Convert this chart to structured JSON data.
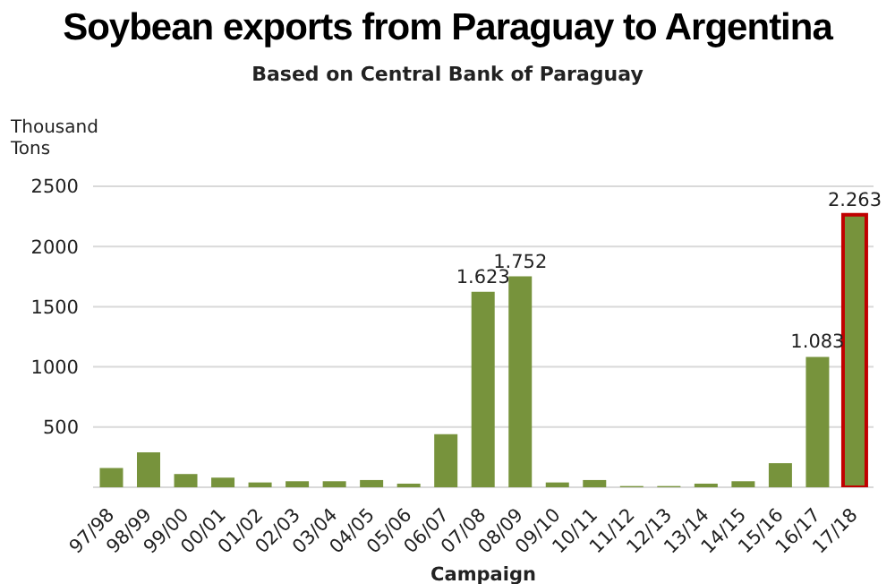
{
  "chart_data": {
    "type": "bar",
    "title": "Soybean exports from Paraguay to Argentina",
    "subtitle": "Based on Central Bank of Paraguay",
    "xlabel": "Campaign",
    "ylabel": "Thousand Tons",
    "categories": [
      "97/98",
      "98/99",
      "99/00",
      "00/01",
      "01/02",
      "02/03",
      "03/04",
      "04/05",
      "05/06",
      "06/07",
      "07/08",
      "08/09",
      "09/10",
      "10/11",
      "11/12",
      "12/13",
      "13/14",
      "14/15",
      "15/16",
      "16/17",
      "17/18"
    ],
    "values": [
      160,
      290,
      110,
      80,
      40,
      50,
      50,
      60,
      30,
      440,
      1623,
      1752,
      40,
      60,
      10,
      10,
      30,
      50,
      200,
      1083,
      2263
    ],
    "value_labels": [
      null,
      null,
      null,
      null,
      null,
      null,
      null,
      null,
      null,
      null,
      "1.623",
      "1.752",
      null,
      null,
      null,
      null,
      null,
      null,
      null,
      "1.083",
      "2.263"
    ],
    "color": "#77933c",
    "ylim": [
      0,
      2500
    ],
    "yticks": [
      {
        "value": 0,
        "label": null
      },
      500,
      1000,
      1500,
      2000,
      2500
    ],
    "grid": "y"
  }
}
